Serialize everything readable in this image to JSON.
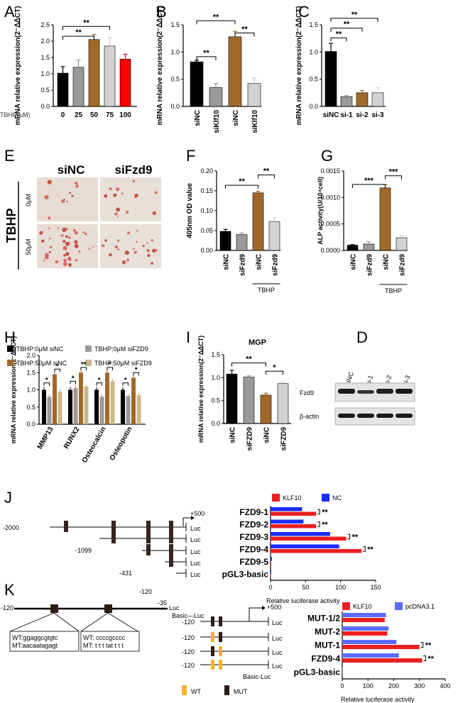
{
  "panel_letters": [
    "A",
    "B",
    "C",
    "D",
    "E",
    "F",
    "G",
    "H",
    "I",
    "J",
    "K"
  ],
  "colors": {
    "black": "#000000",
    "gray": "#9a9a9a",
    "brown": "#a0692a",
    "lightgray": "#d2d2d2",
    "red": "#ff0000",
    "tan": "#c9b98a",
    "blue": "#1a2cff",
    "klf_red": "#ea1f1f",
    "pc_blue": "#5a6cff",
    "wt_yellow": "#f0b530",
    "mut_brown": "#3a2320"
  },
  "chart_data": [
    {
      "id": "A",
      "type": "bar",
      "ylabel": "mRNA relative expression(2⁻ᐃᐃCT)",
      "xlabel": "TBHP(μM)",
      "categories": [
        "0",
        "25",
        "50",
        "75",
        "100"
      ],
      "values": [
        1.02,
        1.2,
        2.05,
        1.85,
        1.45
      ],
      "errors": [
        0.2,
        0.22,
        0.15,
        0.25,
        0.15
      ],
      "ylim": [
        0,
        2.5
      ],
      "yticks": [
        "0.0",
        "0.5",
        "1.0",
        "1.5",
        "2.0",
        "2.5"
      ],
      "significance": [
        "**",
        "**"
      ]
    },
    {
      "id": "B",
      "type": "bar",
      "ylabel": "mRNA relative expression(2⁻ᐃᐃCT)",
      "categories": [
        "siNC",
        "siKlf10",
        "siNC",
        "siKlf10"
      ],
      "values": [
        0.82,
        0.35,
        1.28,
        0.42
      ],
      "errors": [
        0.03,
        0.07,
        0.1,
        0.1
      ],
      "ylim": [
        0,
        1.5
      ],
      "yticks": [
        "0.0",
        "0.5",
        "1.0",
        "1.5"
      ],
      "significance": [
        "**",
        "**",
        "**"
      ]
    },
    {
      "id": "C",
      "type": "bar",
      "ylabel": "mRNA relative expression(2⁻ᐃᐃCT)",
      "categories": [
        "siNC",
        "si-1",
        "si-2",
        "si-3"
      ],
      "values": [
        1.01,
        0.18,
        0.25,
        0.25
      ],
      "errors": [
        0.15,
        0.02,
        0.04,
        0.1
      ],
      "ylim": [
        0,
        1.5
      ],
      "yticks": [
        "0.0",
        "0.5",
        "1.0",
        "1.5"
      ],
      "significance": [
        "**",
        "**",
        "**"
      ]
    },
    {
      "id": "F",
      "type": "bar",
      "ylabel": "405nm OD value",
      "categories": [
        "siNC",
        "siFzd9",
        "siNC",
        "siFzd9"
      ],
      "values": [
        0.048,
        0.04,
        0.145,
        0.072
      ],
      "errors": [
        0.005,
        0.004,
        0.004,
        0.01
      ],
      "ylim": [
        0,
        0.2
      ],
      "yticks": [
        "0.00",
        "0.05",
        "0.10",
        "0.15",
        "0.20"
      ],
      "group_label": "TBHP",
      "significance": [
        "**",
        "**"
      ]
    },
    {
      "id": "G",
      "type": "bar",
      "ylabel": "ALP activity(U/10⁴cell)",
      "categories": [
        "siNC",
        "siFzd9",
        "siNC",
        "siFzd9"
      ],
      "values": [
        0.0001,
        0.00012,
        0.00118,
        0.00024
      ],
      "errors": [
        1e-05,
        4e-05,
        6e-05,
        4e-05
      ],
      "ylim": [
        0,
        0.0015
      ],
      "yticks": [
        "0.0000",
        "0.0005",
        "0.0010",
        "0.0015"
      ],
      "group_label": "TBHP",
      "significance": [
        "***",
        "***"
      ]
    },
    {
      "id": "H",
      "type": "bar",
      "ylabel": "mRNA relative expression(2⁻ᐃᐃCT)",
      "categories": [
        "MMP13",
        "RUNX2",
        "Osteocalcin",
        "Osteopotin"
      ],
      "series": [
        {
          "name": "TBHP:0μM siNC",
          "values": [
            1.0,
            1.0,
            1.0,
            1.0
          ]
        },
        {
          "name": "TBHP:0μM siFZD9",
          "values": [
            0.8,
            1.05,
            0.8,
            0.82
          ]
        },
        {
          "name": "TBHP:50μM siNC",
          "values": [
            1.45,
            1.5,
            1.5,
            1.35
          ]
        },
        {
          "name": "TBHP:50μM siFZD9",
          "values": [
            0.95,
            1.1,
            1.25,
            0.85
          ]
        }
      ],
      "ylim": [
        0,
        2.0
      ],
      "yticks": [
        "0.0",
        "0.5",
        "1.0",
        "1.5",
        "2.0"
      ],
      "significance": [
        "*",
        "**",
        "*",
        "*",
        "*"
      ]
    },
    {
      "id": "I",
      "type": "bar",
      "title": "MGP",
      "ylabel": "mRNA relative expression(2⁻ᐃᐃCT)",
      "categories": [
        "siNC",
        "siFZD9",
        "siNC",
        "siFZD9"
      ],
      "values": [
        1.08,
        1.01,
        0.62,
        0.87
      ],
      "errors": [
        0.08,
        0.03,
        0.04,
        0.03
      ],
      "ylim": [
        0,
        1.5
      ],
      "yticks": [
        "0.0",
        "0.5",
        "1.0",
        "1.5"
      ],
      "significance": [
        "**",
        "*"
      ]
    },
    {
      "id": "J",
      "type": "bar",
      "orientation": "horizontal",
      "xlabel": "Relative luciferase activity",
      "categories": [
        "FZD9-1",
        "FZD9-2",
        "FZD9-3",
        "FZD9-4",
        "FZD9-5",
        "pGL3-basic"
      ],
      "series": [
        {
          "name": "KLF10",
          "values": [
            65,
            65,
            108,
            130,
            1,
            0
          ]
        },
        {
          "name": "NC",
          "values": [
            45,
            47,
            85,
            98,
            2,
            1
          ]
        }
      ],
      "xlim": [
        0,
        150
      ],
      "xticks": [
        "0",
        "50",
        "100",
        "150"
      ],
      "significance": [
        "**",
        "**",
        "**",
        "**"
      ]
    },
    {
      "id": "K",
      "type": "bar",
      "orientation": "horizontal",
      "xlabel": "Relative luciferase activity",
      "categories": [
        "MUT-1/2",
        "MUT-2",
        "MUT-1",
        "FZD9-4",
        "pGL3-basic"
      ],
      "series": [
        {
          "name": "KLF10",
          "values": [
            165,
            175,
            300,
            310,
            0
          ]
        },
        {
          "name": "pcDNA3.1",
          "values": [
            170,
            180,
            210,
            220,
            0
          ]
        }
      ],
      "xlim": [
        0,
        400
      ],
      "xticks": [
        "0",
        "100",
        "200",
        "300",
        "400"
      ],
      "significance": [
        "**",
        "**"
      ]
    }
  ],
  "panel_e": {
    "col_labels": [
      "siNC",
      "siFzd9"
    ],
    "side_label": "TBHP",
    "row_labels": [
      "0μM",
      "50μM"
    ]
  },
  "panel_d": {
    "lanes": [
      "siNC",
      "si-1",
      "si-2",
      "si-3"
    ],
    "rows": [
      "Fzd9",
      "β-actin"
    ]
  },
  "panel_j": {
    "constructs": [
      "-2000",
      "-1099",
      "-431",
      "-120",
      "-35",
      "Basic"
    ],
    "tss_label": "+500",
    "luc": "Luc",
    "basic_luc": "Basic—Luc"
  },
  "panel_k": {
    "left_end": "-120",
    "right_end": "Luc",
    "wt1": "WT:ggaggcgtgtc",
    "mt1": "MT:aacaatagagt",
    "wt2": "WT:  ccccgcccc",
    "mt2": "MT:  t t t tat t t t",
    "constructs": [
      "-120",
      "-120",
      "-120",
      "-120"
    ],
    "tss_label": "+500",
    "luc": "Luc",
    "basic_luc": "Basic-Luc",
    "legend_wt": "WT",
    "legend_mut": "MUT"
  }
}
